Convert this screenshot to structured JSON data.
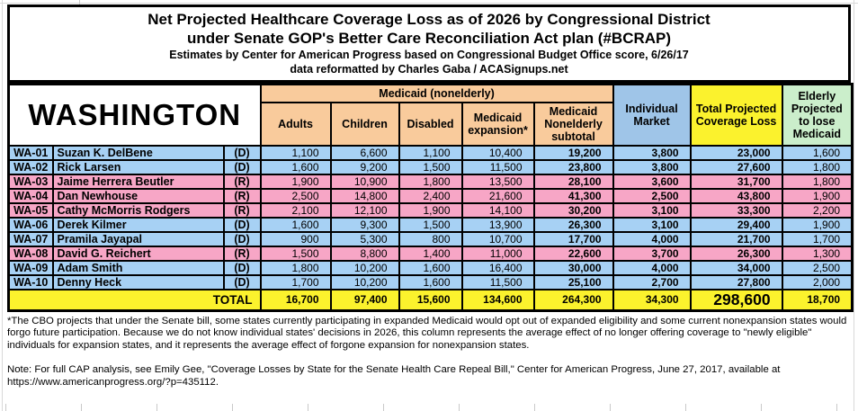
{
  "title": {
    "line1": "Net Projected Healthcare Coverage Loss as of 2026 by Congressional District",
    "line2": "under Senate GOP's Better Care Reconciliation Act plan (#BCRAP)",
    "line3": "Estimates by Center for American Progress based on Congressional Budget Office score, 6/26/17",
    "line4": "data reformatted by Charles Gaba / ACASignups.net"
  },
  "state": "WASHINGTON",
  "table": {
    "group_header": "Medicaid (nonelderly)",
    "columns": [
      "Adults",
      "Children",
      "Disabled",
      "Medicaid expansion*",
      "Medicaid Nonelderly subtotal",
      "Individual Market",
      "Total Projected Coverage Loss",
      "Elderly Projected to lose Medicaid"
    ],
    "rows": [
      {
        "district": "WA-01",
        "name": "Suzan K. DelBene",
        "party": "(D)",
        "values": [
          "1,100",
          "6,600",
          "1,100",
          "10,400",
          "19,200",
          "3,800",
          "23,000",
          "1,600"
        ]
      },
      {
        "district": "WA-02",
        "name": "Rick Larsen",
        "party": "(D)",
        "values": [
          "1,600",
          "9,200",
          "1,500",
          "11,500",
          "23,800",
          "3,800",
          "27,600",
          "1,800"
        ]
      },
      {
        "district": "WA-03",
        "name": "Jaime Herrera Beutler",
        "party": "(R)",
        "values": [
          "1,900",
          "10,900",
          "1,800",
          "13,500",
          "28,100",
          "3,600",
          "31,700",
          "1,800"
        ]
      },
      {
        "district": "WA-04",
        "name": "Dan Newhouse",
        "party": "(R)",
        "values": [
          "2,500",
          "14,800",
          "2,400",
          "21,600",
          "41,300",
          "2,500",
          "43,800",
          "1,900"
        ]
      },
      {
        "district": "WA-05",
        "name": "Cathy McMorris Rodgers",
        "party": "(R)",
        "values": [
          "2,100",
          "12,100",
          "1,900",
          "14,100",
          "30,200",
          "3,100",
          "33,300",
          "2,200"
        ]
      },
      {
        "district": "WA-06",
        "name": "Derek Kilmer",
        "party": "(D)",
        "values": [
          "1,600",
          "9,300",
          "1,500",
          "13,900",
          "26,300",
          "3,100",
          "29,400",
          "1,900"
        ]
      },
      {
        "district": "WA-07",
        "name": "Pramila Jayapal",
        "party": "(D)",
        "values": [
          "900",
          "5,300",
          "800",
          "10,700",
          "17,700",
          "4,000",
          "21,700",
          "1,700"
        ]
      },
      {
        "district": "WA-08",
        "name": "David G. Reichert",
        "party": "(R)",
        "values": [
          "1,500",
          "8,800",
          "1,400",
          "11,000",
          "22,600",
          "3,700",
          "26,300",
          "1,300"
        ]
      },
      {
        "district": "WA-09",
        "name": "Adam Smith",
        "party": "(D)",
        "values": [
          "1,800",
          "10,200",
          "1,600",
          "16,400",
          "30,000",
          "4,000",
          "34,000",
          "2,500"
        ]
      },
      {
        "district": "WA-10",
        "name": "Denny Heck",
        "party": "(D)",
        "values": [
          "1,700",
          "10,200",
          "1,600",
          "11,500",
          "25,100",
          "2,700",
          "27,800",
          "2,000"
        ]
      }
    ],
    "total_label": "TOTAL",
    "totals": [
      "16,700",
      "97,400",
      "15,600",
      "134,600",
      "264,300",
      "34,300",
      "298,600",
      "18,700"
    ]
  },
  "notes": {
    "footnote": "*The CBO projects that under the Senate bill, some states currently participating in expanded Medicaid would opt out of expanded eligibility and some current nonexpansion states would forgo future participation. Because we do not know individual states' decisions in 2026, this column represents the average effect of no longer offering coverage to \"newly eligible\" individuals for expansion states, and it represents the average effect of forgone expansion for nonexpansion states.",
    "source_note": "Note: For full CAP analysis, see Emily Gee, \"Coverage Losses by State for the Senate Health Care Repeal Bill,\" Center for American Progress, June 27, 2017, available at https://www.americanprogress.org/?p=435112."
  },
  "colors": {
    "democrat_row": "#A7D1F4",
    "republican_row": "#F7A6C6",
    "medicaid_header": "#F9CB9C",
    "individual_market_header": "#9FC5E8",
    "highlight_yellow": "#FBF22D",
    "elderly_header": "#CBEECB"
  }
}
